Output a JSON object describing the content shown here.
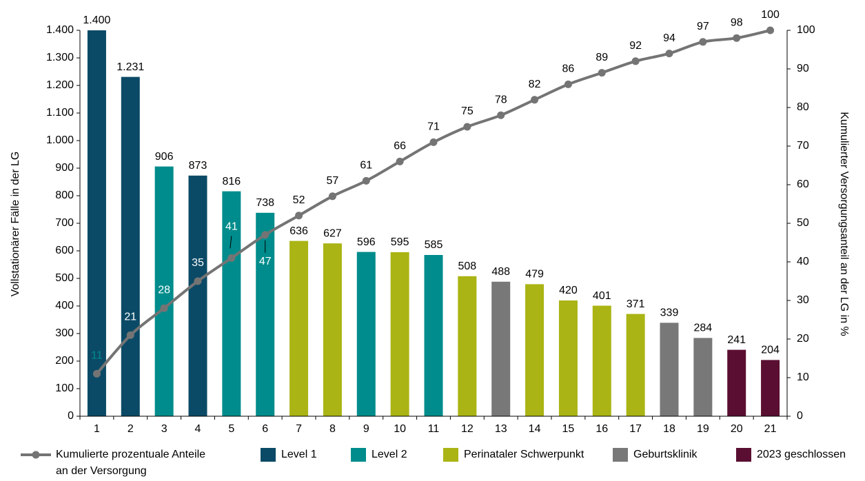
{
  "chart_data": {
    "type": "bar",
    "categories": [
      "1",
      "2",
      "3",
      "4",
      "5",
      "6",
      "7",
      "8",
      "9",
      "10",
      "11",
      "12",
      "13",
      "14",
      "15",
      "16",
      "17",
      "18",
      "19",
      "20",
      "21"
    ],
    "values": [
      1400,
      1231,
      906,
      873,
      816,
      738,
      636,
      627,
      596,
      595,
      585,
      508,
      488,
      479,
      420,
      401,
      371,
      339,
      284,
      241,
      204
    ],
    "value_labels": [
      "1.400",
      "1.231",
      "906",
      "873",
      "816",
      "738",
      "636",
      "627",
      "596",
      "595",
      "585",
      "508",
      "488",
      "479",
      "420",
      "401",
      "371",
      "339",
      "284",
      "241",
      "204"
    ],
    "bar_groups": [
      "Level 1",
      "Level 1",
      "Level 2",
      "Level 1",
      "Level 2",
      "Level 2",
      "Perinataler Schwerpunkt",
      "Perinataler Schwerpunkt",
      "Level 2",
      "Perinataler Schwerpunkt",
      "Level 2",
      "Perinataler Schwerpunkt",
      "Geburtsklinik",
      "Perinataler Schwerpunkt",
      "Perinataler Schwerpunkt",
      "Perinataler Schwerpunkt",
      "Perinataler Schwerpunkt",
      "Geburtsklinik",
      "Geburtsklinik",
      "2023 geschlossen",
      "2023 geschlossen"
    ],
    "cumulative_series": {
      "name": "Kumulierte prozentuale Anteile an der Versorgung",
      "values": [
        11,
        21,
        28,
        35,
        41,
        47,
        52,
        57,
        61,
        66,
        71,
        75,
        78,
        82,
        86,
        89,
        92,
        94,
        97,
        98,
        100
      ],
      "color": "#747474"
    },
    "ylabel": "Vollstationärer Fälle in der LG",
    "y2label": "Kumulierter Versorgungsanteil an der LG in %",
    "ylim": [
      0,
      1400
    ],
    "yticks": [
      0,
      100,
      200,
      300,
      400,
      500,
      600,
      700,
      800,
      900,
      1000,
      1100,
      1200,
      1300,
      1400
    ],
    "ytick_labels": [
      "0",
      "100",
      "200",
      "300",
      "400",
      "500",
      "600",
      "700",
      "800",
      "900",
      "1.000",
      "1.100",
      "1.200",
      "1.300",
      "1.400"
    ],
    "y2lim": [
      0,
      100
    ],
    "y2ticks": [
      0,
      10,
      20,
      30,
      40,
      50,
      60,
      70,
      80,
      90,
      100
    ],
    "y2tick_labels": [
      "0",
      "10",
      "20",
      "30",
      "40",
      "50",
      "60",
      "70",
      "80",
      "90",
      "100"
    ],
    "grid": false,
    "legend_position": "bottom",
    "legend": [
      {
        "label_lines": [
          "Kumulierte prozentuale Anteile",
          "an der Versorgung"
        ],
        "kind": "line",
        "color": "#747474"
      },
      {
        "label_lines": [
          "Level 1"
        ],
        "kind": "bar",
        "color": "#0b4a66"
      },
      {
        "label_lines": [
          "Level 2"
        ],
        "kind": "bar",
        "color": "#008c8c"
      },
      {
        "label_lines": [
          "Perinataler Schwerpunkt"
        ],
        "kind": "bar",
        "color": "#aab414"
      },
      {
        "label_lines": [
          "Geburtsklinik"
        ],
        "kind": "bar",
        "color": "#787878"
      },
      {
        "label_lines": [
          "2023 geschlossen"
        ],
        "kind": "bar",
        "color": "#5a0f32"
      }
    ],
    "colors": {
      "Level 1": "#0b4a66",
      "Level 2": "#008c8c",
      "Perinataler Schwerpunkt": "#aab414",
      "Geburtsklinik": "#787878",
      "2023 geschlossen": "#5a0f32"
    }
  }
}
